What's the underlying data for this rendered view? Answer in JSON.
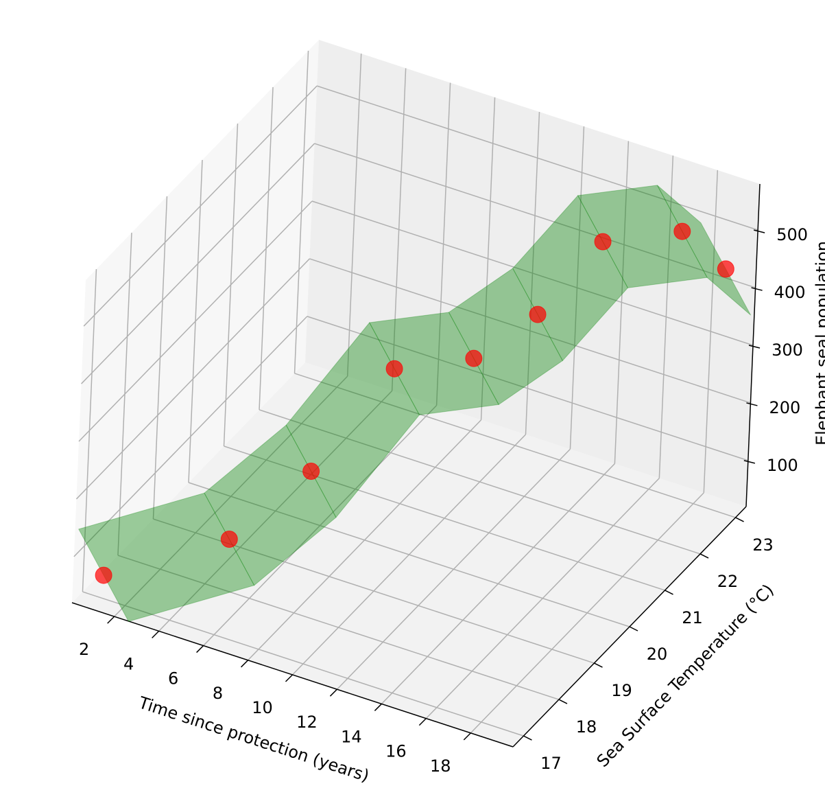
{
  "chart_data": {
    "type": "scatter3d",
    "xlabel": "Time since protection (years)",
    "ylabel": "Sea Surface Temperature (°C)",
    "zlabel": "Elephant seal population",
    "x": [
      1,
      5,
      7,
      9,
      11,
      13,
      15,
      17,
      19
    ],
    "y": [
      17,
      18,
      19,
      20,
      21,
      21.5,
      22,
      23,
      23
    ],
    "z": [
      60,
      110,
      190,
      330,
      310,
      380,
      500,
      480,
      440
    ],
    "color": "red",
    "surface_color": "green",
    "xlim": [
      0.1,
      19.9
    ],
    "ylim": [
      16.7,
      23.3
    ],
    "zlim": [
      20,
      580
    ],
    "xticks": [
      2,
      4,
      6,
      8,
      10,
      12,
      14,
      16,
      18
    ],
    "yticks": [
      17,
      18,
      19,
      20,
      21,
      22,
      23
    ],
    "zticks": [
      100,
      200,
      300,
      400,
      500
    ],
    "grid": true
  }
}
